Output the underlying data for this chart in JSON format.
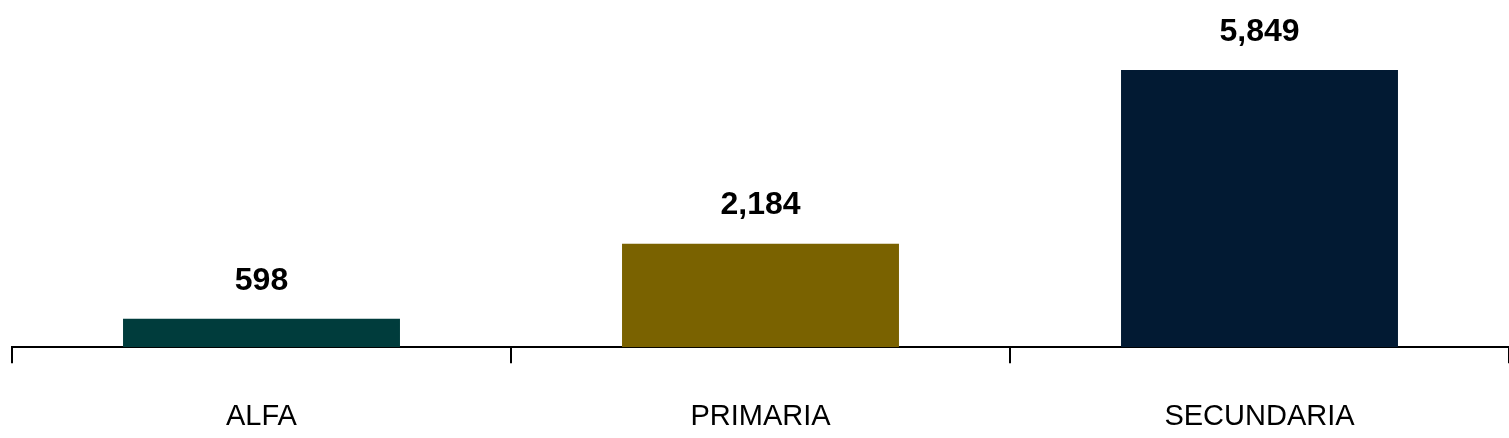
{
  "chart_data": {
    "type": "bar",
    "categories": [
      "ALFA",
      "PRIMARIA",
      "SECUNDARIA"
    ],
    "values": [
      598,
      2184,
      5849
    ],
    "colors": [
      "#003c3c",
      "#7a6200",
      "#021a33"
    ],
    "value_labels": [
      "598",
      "2,184",
      "5,849"
    ],
    "grid": false,
    "legend": false
  }
}
